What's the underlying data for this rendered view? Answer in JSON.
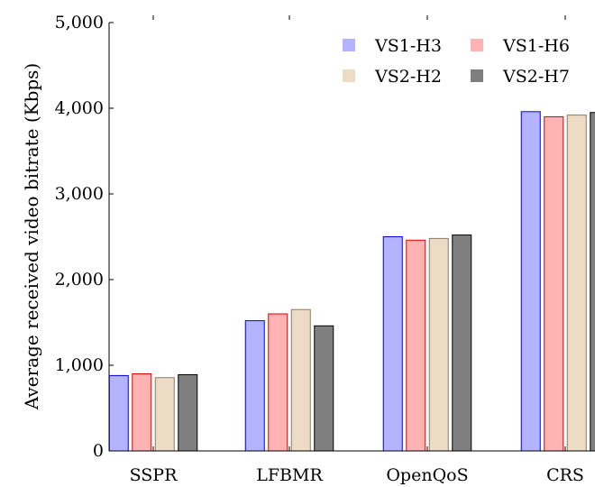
{
  "chart_data": {
    "type": "bar",
    "title": "",
    "xlabel": "",
    "ylabel": "Average received video bitrate (Kbps)",
    "ylim": [
      0,
      5000
    ],
    "yticks": [
      0,
      1000,
      2000,
      3000,
      4000,
      5000
    ],
    "ytick_labels": [
      "0",
      "1,000",
      "2,000",
      "3,000",
      "4,000",
      "5,000"
    ],
    "categories": [
      "SSPR",
      "LFBMR",
      "OpenQoS",
      "CRS"
    ],
    "grid": false,
    "legend_position": "top-right",
    "series": [
      {
        "name": "VS1-H3",
        "fill": "#b3b3ff",
        "stroke": "#0000e6",
        "values": [
          880,
          1520,
          2500,
          3960
        ]
      },
      {
        "name": "VS1-H6",
        "fill": "#ffb3b3",
        "stroke": "#e60000",
        "values": [
          900,
          1600,
          2460,
          3900
        ]
      },
      {
        "name": "VS2-H2",
        "fill": "#ecdcc6",
        "stroke": "#8a7a66",
        "values": [
          855,
          1650,
          2480,
          3920
        ]
      },
      {
        "name": "VS2-H7",
        "fill": "#7f7f7f",
        "stroke": "#000000",
        "values": [
          890,
          1460,
          2520,
          3950
        ]
      }
    ]
  }
}
